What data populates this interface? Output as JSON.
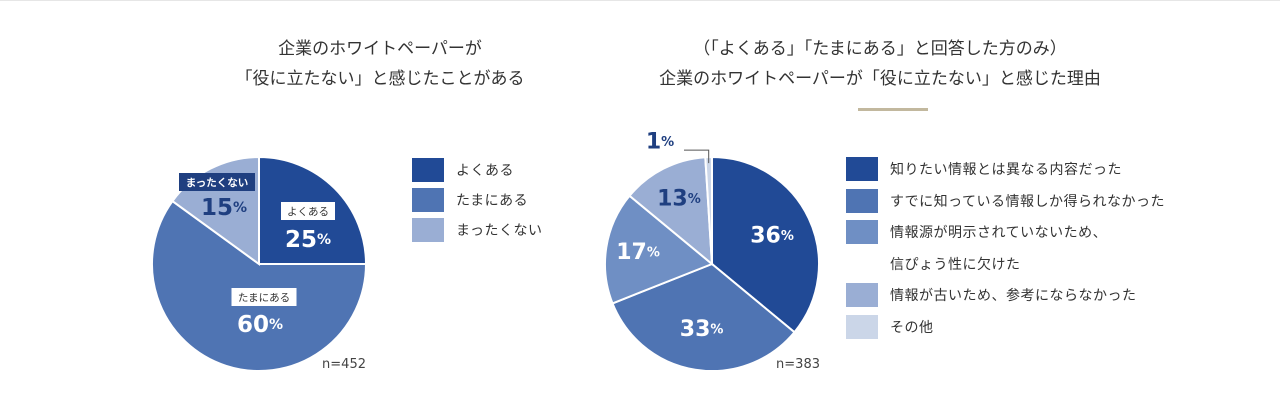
{
  "chart_data": [
    {
      "type": "pie",
      "title": [
        "企業のホワイトペーパーが",
        "「役に立たない」と感じたことがある"
      ],
      "sample": "n=452",
      "slices": [
        {
          "label": "よくある",
          "value": 25,
          "value_text": "25",
          "unit": "%",
          "color": "#214a96"
        },
        {
          "label": "たまにある",
          "value": 60,
          "value_text": "60",
          "unit": "%",
          "color": "#4f74b3"
        },
        {
          "label": "まったくない",
          "value": 15,
          "value_text": "15",
          "unit": "%",
          "color": "#9aaed4"
        }
      ]
    },
    {
      "type": "pie",
      "title": [
        "（「よくある」「たまにある」と回答した方のみ）",
        "企業のホワイトペーパーが「役に立たない」と感じた理由"
      ],
      "sample": "n=383",
      "slices": [
        {
          "label": "知りたい情報とは異なる内容だった",
          "value": 36,
          "value_text": "36",
          "unit": "%",
          "color": "#214a96"
        },
        {
          "label": "すでに知っている情報しか得られなかった",
          "value": 33,
          "value_text": "33",
          "unit": "%",
          "color": "#4f74b3"
        },
        {
          "label": "情報源が明示されていないため、信ぴょう性に欠けた",
          "label_lines": [
            "情報源が明示されていないため、",
            "信ぴょう性に欠けた"
          ],
          "value": 17,
          "value_text": "17",
          "unit": "%",
          "color": "#6f8fc4"
        },
        {
          "label": "情報が古いため、参考にならなかった",
          "value": 13,
          "value_text": "13",
          "unit": "%",
          "color": "#9aaed4"
        },
        {
          "label": "その他",
          "value": 1,
          "value_text": "1",
          "unit": "%",
          "color": "#cbd6e8"
        }
      ]
    }
  ]
}
